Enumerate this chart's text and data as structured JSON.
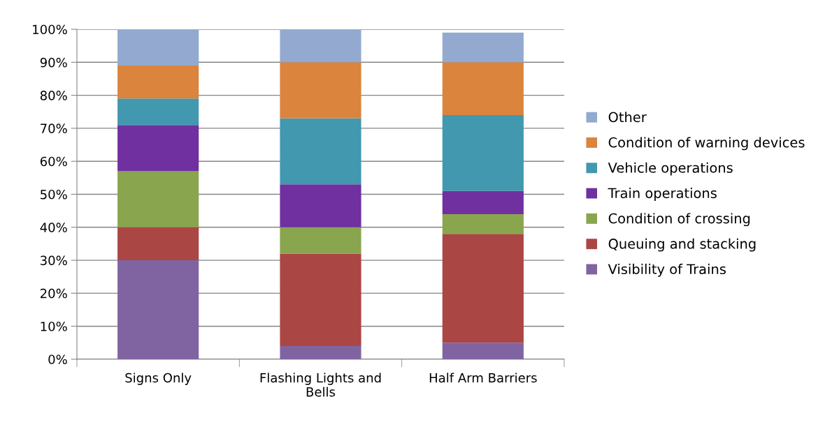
{
  "chart_data": {
    "type": "bar",
    "stacked": true,
    "categories": [
      "Signs Only",
      "Flashing Lights and\nBells",
      "Half Arm Barriers"
    ],
    "series": [
      {
        "name": "Visibility of Trains",
        "color": "#8064a2",
        "values": [
          30,
          4,
          5
        ]
      },
      {
        "name": "Queuing and stacking",
        "color": "#aa4643",
        "values": [
          10,
          28,
          33
        ]
      },
      {
        "name": "Condition of crossing",
        "color": "#89a54e",
        "values": [
          17,
          8,
          6
        ]
      },
      {
        "name": "Train operations",
        "color": "#7030a0",
        "values": [
          14,
          13,
          7
        ]
      },
      {
        "name": "Vehicle operations",
        "color": "#4198af",
        "values": [
          8,
          20,
          23
        ]
      },
      {
        "name": "Condition of warning devices",
        "color": "#db843d",
        "values": [
          10,
          17,
          16
        ]
      },
      {
        "name": "Other",
        "color": "#93a9cf",
        "values": [
          11,
          10,
          9
        ]
      }
    ],
    "ylim": [
      0,
      100
    ],
    "yticks": [
      {
        "value": 0,
        "label": "0%"
      },
      {
        "value": 10,
        "label": "10%"
      },
      {
        "value": 20,
        "label": "20%"
      },
      {
        "value": 30,
        "label": "30%"
      },
      {
        "value": 40,
        "label": "40%"
      },
      {
        "value": 50,
        "label": "50%"
      },
      {
        "value": 60,
        "label": "60%"
      },
      {
        "value": 70,
        "label": "70%"
      },
      {
        "value": 80,
        "label": "80%"
      },
      {
        "value": 90,
        "label": "90%"
      },
      {
        "value": 100,
        "label": "100%"
      }
    ],
    "grid": "y",
    "legend": "right"
  }
}
